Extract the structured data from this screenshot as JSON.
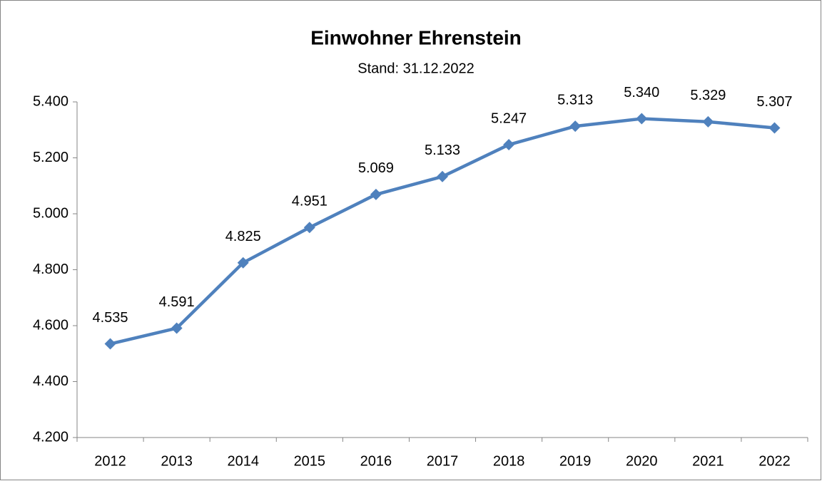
{
  "chart_data": {
    "type": "line",
    "title": "Einwohner Ehrenstein",
    "subtitle": "Stand: 31.12.2022",
    "categories": [
      "2012",
      "2013",
      "2014",
      "2015",
      "2016",
      "2017",
      "2018",
      "2019",
      "2020",
      "2021",
      "2022"
    ],
    "values": [
      4535,
      4591,
      4825,
      4951,
      5069,
      5133,
      5247,
      5313,
      5340,
      5329,
      5307
    ],
    "value_labels": [
      "4.535",
      "4.591",
      "4.825",
      "4.951",
      "5.069",
      "5.133",
      "5.247",
      "5.313",
      "5.340",
      "5.329",
      "5.307"
    ],
    "color": "#4f81bd",
    "ylim": [
      4200,
      5400
    ],
    "yticks": [
      {
        "value": 4200,
        "label": "4.200"
      },
      {
        "value": 4400,
        "label": "4.400"
      },
      {
        "value": 4600,
        "label": "4.600"
      },
      {
        "value": 4800,
        "label": "4.800"
      },
      {
        "value": 5000,
        "label": "5.000"
      },
      {
        "value": 5200,
        "label": "5.200"
      },
      {
        "value": 5400,
        "label": "5.400"
      }
    ],
    "grid": false
  }
}
